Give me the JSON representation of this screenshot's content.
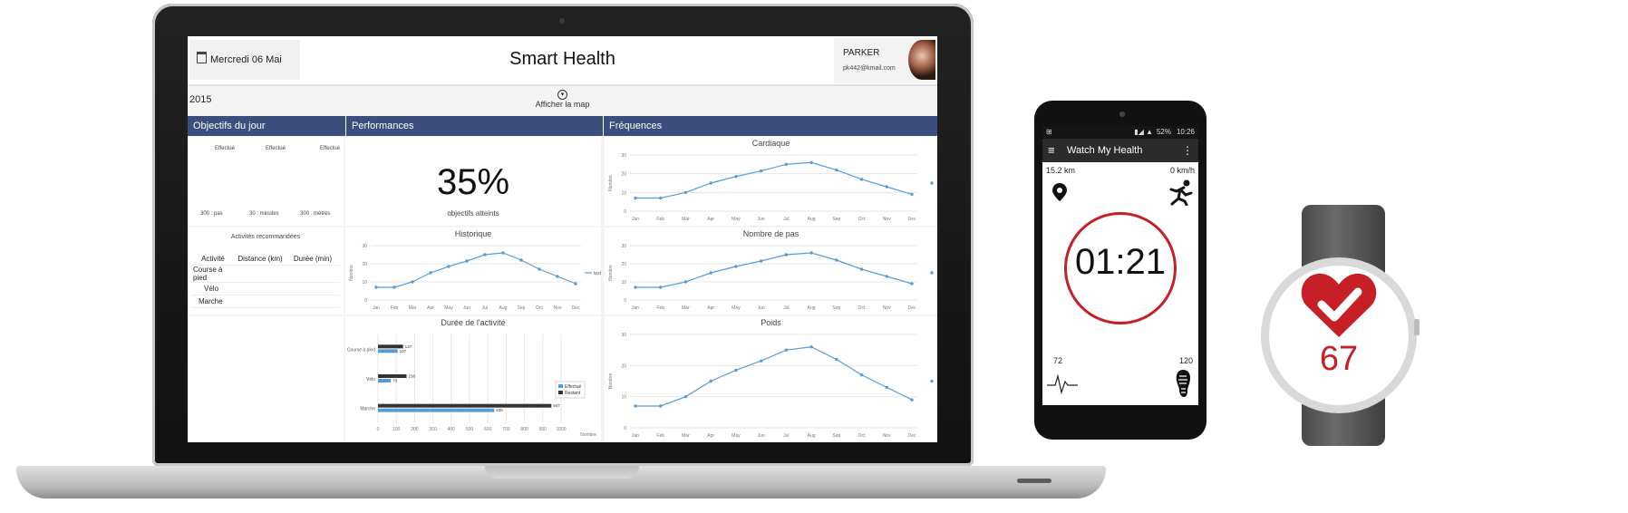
{
  "laptop": {
    "header": {
      "date": "Mercredi 06 Mai 2015",
      "title": "Smart Health",
      "user": {
        "name": "PARKER",
        "email": "pk442@kmail.com"
      }
    },
    "map_toggle_label": "Afficher la map",
    "sections": [
      "Objectifs du jour",
      "Performances",
      "Fréquences"
    ],
    "objectives": {
      "columns": [
        {
          "label": "Effectué",
          "target": "300 : pas"
        },
        {
          "label": "Effectué",
          "target": "30 : minutes"
        },
        {
          "label": "Effectué",
          "target": "300 : mètres"
        }
      ]
    },
    "activities": {
      "title": "Activités recommandées",
      "headers": [
        "Activité",
        "Distance (km)",
        "Durée (min)"
      ],
      "rows": [
        "Course à pied",
        "Vélo",
        "Marche"
      ]
    },
    "performance": {
      "percent": "35%",
      "label": "objectifs atteints"
    },
    "chart_titles": {
      "historique": "Historique",
      "cardiaque": "Cardiaque",
      "pas": "Nombre de pas",
      "poids": "Poids",
      "duree": "Durée de l'activité"
    },
    "line_legend": "test",
    "ylabel": "Nombre"
  },
  "chart_data": [
    {
      "type": "line",
      "title": "Historique",
      "categories": [
        "Jan",
        "Feb",
        "Mar",
        "Apr",
        "May",
        "Jun",
        "Jul",
        "Aug",
        "Sep",
        "Oct",
        "Nov",
        "Dec"
      ],
      "series": [
        {
          "name": "test",
          "values": [
            7,
            7,
            10,
            15,
            18.5,
            21.5,
            25,
            26,
            22,
            17,
            13,
            9
          ]
        }
      ],
      "ylabel": "Nombre",
      "ylim": [
        0,
        30
      ],
      "yticks": [
        0,
        10,
        20,
        30
      ]
    },
    {
      "type": "line",
      "title": "Cardiaque",
      "categories": [
        "Jan",
        "Feb",
        "Mar",
        "Apr",
        "May",
        "Jun",
        "Jul",
        "Aug",
        "Sep",
        "Oct",
        "Nov",
        "Dec"
      ],
      "series": [
        {
          "values": [
            7,
            7,
            10,
            15,
            18.5,
            21.5,
            25,
            26,
            22,
            17,
            13,
            9
          ]
        }
      ],
      "ylabel": "Nombre",
      "ylim": [
        0,
        30
      ],
      "yticks": [
        0,
        10,
        20,
        30
      ]
    },
    {
      "type": "line",
      "title": "Nombre de pas",
      "categories": [
        "Jan",
        "Feb",
        "Mar",
        "Apr",
        "May",
        "Jun",
        "Jul",
        "Aug",
        "Sep",
        "Oct",
        "Nov",
        "Dec"
      ],
      "series": [
        {
          "values": [
            7,
            7,
            10,
            15,
            18.5,
            21.5,
            25,
            26,
            22,
            17,
            13,
            9
          ]
        }
      ],
      "ylabel": "Nombre",
      "ylim": [
        0,
        30
      ],
      "yticks": [
        0,
        10,
        20,
        30
      ]
    },
    {
      "type": "line",
      "title": "Poids",
      "categories": [
        "Jan",
        "Feb",
        "Mar",
        "Apr",
        "May",
        "Jun",
        "Jul",
        "Aug",
        "Sep",
        "Oct",
        "Nov",
        "Dec"
      ],
      "series": [
        {
          "values": [
            7,
            7,
            10,
            15,
            18.5,
            21.5,
            25,
            26,
            22,
            17,
            13,
            9
          ]
        }
      ],
      "ylabel": "Nombre",
      "ylim": [
        0,
        30
      ],
      "yticks": [
        0,
        10,
        20,
        30
      ]
    },
    {
      "type": "bar",
      "orientation": "horizontal",
      "title": "Durée de l'activité",
      "categories": [
        "Course à pied",
        "Vélo",
        "Marche"
      ],
      "series": [
        {
          "name": "Effectué",
          "values": [
            107,
            70,
            635
          ],
          "color": "#5b9bd5"
        },
        {
          "name": "Restant",
          "values": [
            137,
            156,
            947
          ],
          "color": "#333333"
        }
      ],
      "xlabel": "Nombre",
      "xlim": [
        0,
        1000
      ],
      "xticks": [
        0,
        100,
        200,
        300,
        400,
        500,
        600,
        700,
        800,
        900,
        1000
      ]
    }
  ],
  "phone": {
    "status_time": "10:26",
    "battery": "52%",
    "app_title": "Watch My Health",
    "distance": "15.2 km",
    "speed": "0 km/h",
    "timer": "01:21",
    "heart_rate": "72",
    "steps": "120"
  },
  "watch": {
    "value": "67"
  },
  "colors": {
    "accent": "#3b4e7e",
    "line": "#5b9bd5",
    "red": "#c62026"
  }
}
